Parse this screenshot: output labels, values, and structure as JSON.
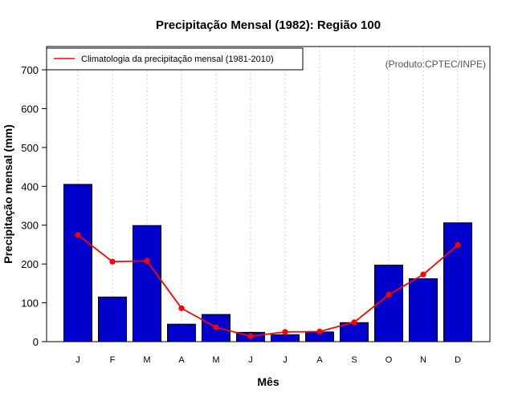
{
  "chart_data": {
    "type": "bar",
    "title": "Precipitação Mensal (1982): Região 100",
    "xlabel": "Mês",
    "ylabel": "Precipitação mensal (mm)",
    "ylim": [
      0,
      760
    ],
    "yticks": [
      0,
      100,
      200,
      300,
      400,
      500,
      600,
      700
    ],
    "categories": [
      "J",
      "F",
      "M",
      "A",
      "M",
      "J",
      "J",
      "A",
      "S",
      "O",
      "N",
      "D"
    ],
    "series": [
      {
        "name": "Precipitação mensal (1982)",
        "type": "bar",
        "color": "#0000cc",
        "values": [
          405,
          115,
          299,
          45,
          70,
          24,
          18,
          25,
          49,
          197,
          162,
          306
        ]
      },
      {
        "name": "Climatologia da precipitação mensal (1981-2010)",
        "type": "line",
        "color": "#ff0000",
        "values": [
          275,
          206,
          208,
          86,
          37,
          14,
          25,
          26,
          50,
          121,
          173,
          249
        ]
      }
    ],
    "legend": {
      "label": "Climatologia da precipitação mensal (1981-2010)",
      "position": "top-left"
    },
    "annotation": "(Produto:CPTEC/INPE)",
    "grid": "vertical dotted"
  }
}
